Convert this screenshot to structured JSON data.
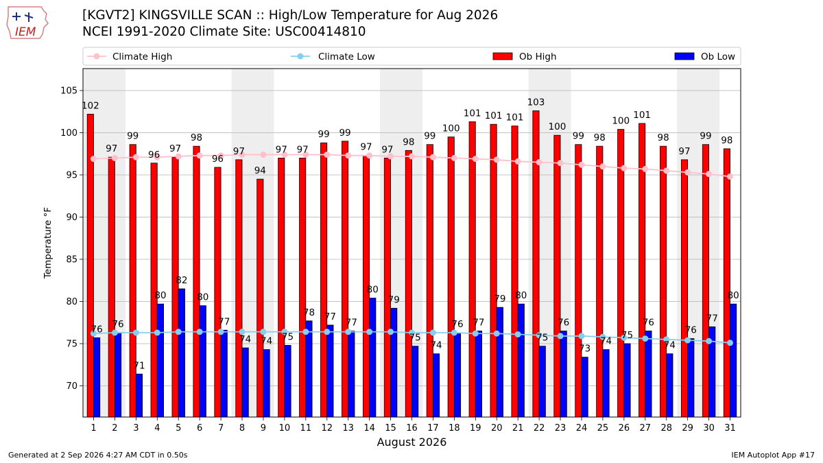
{
  "header": {
    "title": "[KGVT2] KINGSVILLE SCAN :: High/Low Temperature for Aug 2026",
    "subtitle": "NCEI 1991-2020 Climate Site: USC00414810",
    "logo_text": "IEM"
  },
  "footer": {
    "left": "Generated at 2 Sep 2026 4:27 AM CDT in 0.50s",
    "right": "IEM Autoplot App #17"
  },
  "chart_data": {
    "type": "bar",
    "title": "[KGVT2] KINGSVILLE SCAN :: High/Low Temperature for Aug 2026",
    "xlabel": "August 2026",
    "ylabel": "Temperature °F",
    "ylim": [
      66.3,
      107.6
    ],
    "yticks": [
      70,
      75,
      80,
      85,
      90,
      95,
      100,
      105
    ],
    "grid": true,
    "legend_position": "top",
    "categories": [
      "1",
      "2",
      "3",
      "4",
      "5",
      "6",
      "7",
      "8",
      "9",
      "10",
      "11",
      "12",
      "13",
      "14",
      "15",
      "16",
      "17",
      "18",
      "19",
      "20",
      "21",
      "22",
      "23",
      "24",
      "25",
      "26",
      "27",
      "28",
      "29",
      "30",
      "31"
    ],
    "weekend_days": [
      1,
      2,
      8,
      9,
      15,
      16,
      22,
      23,
      29,
      30
    ],
    "series": [
      {
        "name": "Ob High",
        "kind": "bar",
        "color": "#ff0000",
        "values": [
          102.2,
          97.1,
          98.6,
          96.4,
          97.1,
          98.4,
          95.9,
          96.8,
          94.5,
          97.0,
          97.0,
          98.8,
          99.0,
          97.3,
          97.0,
          97.9,
          98.6,
          99.5,
          101.3,
          101.0,
          100.8,
          102.6,
          99.7,
          98.6,
          98.4,
          100.4,
          101.1,
          98.4,
          96.8,
          98.6,
          98.1
        ],
        "labels": [
          "102",
          "97",
          "99",
          "96",
          "97",
          "98",
          "96",
          "97",
          "94",
          "97",
          "97",
          "99",
          "99",
          "97",
          "97",
          "98",
          "99",
          "100",
          "101",
          "101",
          "101",
          "103",
          "100",
          "99",
          "98",
          "100",
          "101",
          "98",
          "97",
          "99",
          "98"
        ]
      },
      {
        "name": "Ob Low",
        "kind": "bar",
        "color": "#0000ff",
        "values": [
          75.7,
          76.3,
          71.4,
          79.7,
          81.5,
          79.5,
          76.6,
          74.5,
          74.3,
          74.8,
          77.7,
          77.2,
          76.5,
          80.4,
          79.2,
          74.7,
          73.8,
          76.3,
          76.5,
          79.3,
          79.7,
          74.7,
          76.5,
          73.4,
          74.3,
          75.0,
          76.5,
          73.8,
          75.6,
          77.0,
          79.7
        ],
        "labels": [
          "76",
          "76",
          "71",
          "80",
          "82",
          "80",
          "77",
          "74",
          "74",
          "75",
          "78",
          "77",
          "77",
          "80",
          "79",
          "75",
          "74",
          "76",
          "77",
          "79",
          "80",
          "75",
          "76",
          "73",
          "74",
          "75",
          "76",
          "74",
          "76",
          "77",
          "80"
        ]
      },
      {
        "name": "Climate High",
        "kind": "line",
        "color": "#ffc0cb",
        "values": [
          96.9,
          97.0,
          97.1,
          97.1,
          97.2,
          97.3,
          97.3,
          97.4,
          97.4,
          97.4,
          97.4,
          97.4,
          97.3,
          97.3,
          97.2,
          97.2,
          97.1,
          97.0,
          96.9,
          96.8,
          96.6,
          96.5,
          96.4,
          96.2,
          96.0,
          95.8,
          95.7,
          95.5,
          95.3,
          95.1,
          94.8
        ]
      },
      {
        "name": "Climate Low",
        "kind": "line",
        "color": "#87ceeb",
        "values": [
          76.2,
          76.3,
          76.3,
          76.3,
          76.4,
          76.4,
          76.4,
          76.4,
          76.4,
          76.4,
          76.4,
          76.4,
          76.4,
          76.4,
          76.4,
          76.3,
          76.3,
          76.3,
          76.2,
          76.2,
          76.1,
          76.0,
          75.9,
          75.9,
          75.8,
          75.7,
          75.6,
          75.5,
          75.4,
          75.3,
          75.1
        ]
      }
    ],
    "legend": [
      "Climate High",
      "Climate Low",
      "Ob High",
      "Ob Low"
    ]
  }
}
